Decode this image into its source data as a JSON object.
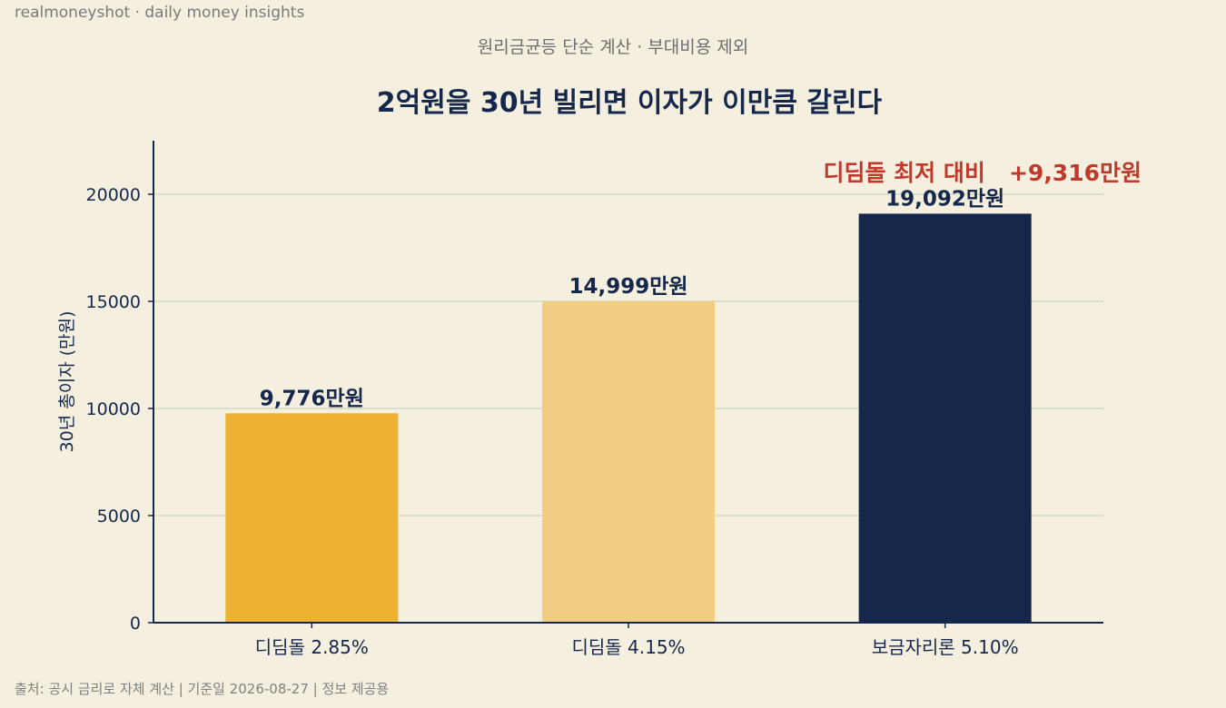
{
  "brand": "realmoneyshot · daily money insights",
  "header": {
    "subtitle": "원리금균등 단순 계산 · 부대비용 제외",
    "title": "2억원을 30년 빌리면 이자가 이만큼 갈린다"
  },
  "footer": "출처: 공시 금리로 자체 계산  |  기준일 2026-08-27  |  정보 제공용",
  "annotation": "디딤돌 최저 대비   +9,316만원",
  "chart_data": {
    "type": "bar",
    "categories": [
      "디딤돌 2.85%",
      "디딤돌 4.15%",
      "보금자리론 5.10%"
    ],
    "values": [
      9776,
      14999,
      19092
    ],
    "value_labels": [
      "9,776만원",
      "14,999만원",
      "19,092만원"
    ],
    "colors": [
      "#edb22f",
      "#f0cd82",
      "#15284b"
    ],
    "ylabel": "30년 총이자 (만원)",
    "ylim": [
      0,
      22500
    ],
    "yticks": [
      0,
      5000,
      10000,
      15000,
      20000
    ],
    "grid": true,
    "axis_color": "#15284b",
    "grid_color": "#d4d8c6"
  }
}
